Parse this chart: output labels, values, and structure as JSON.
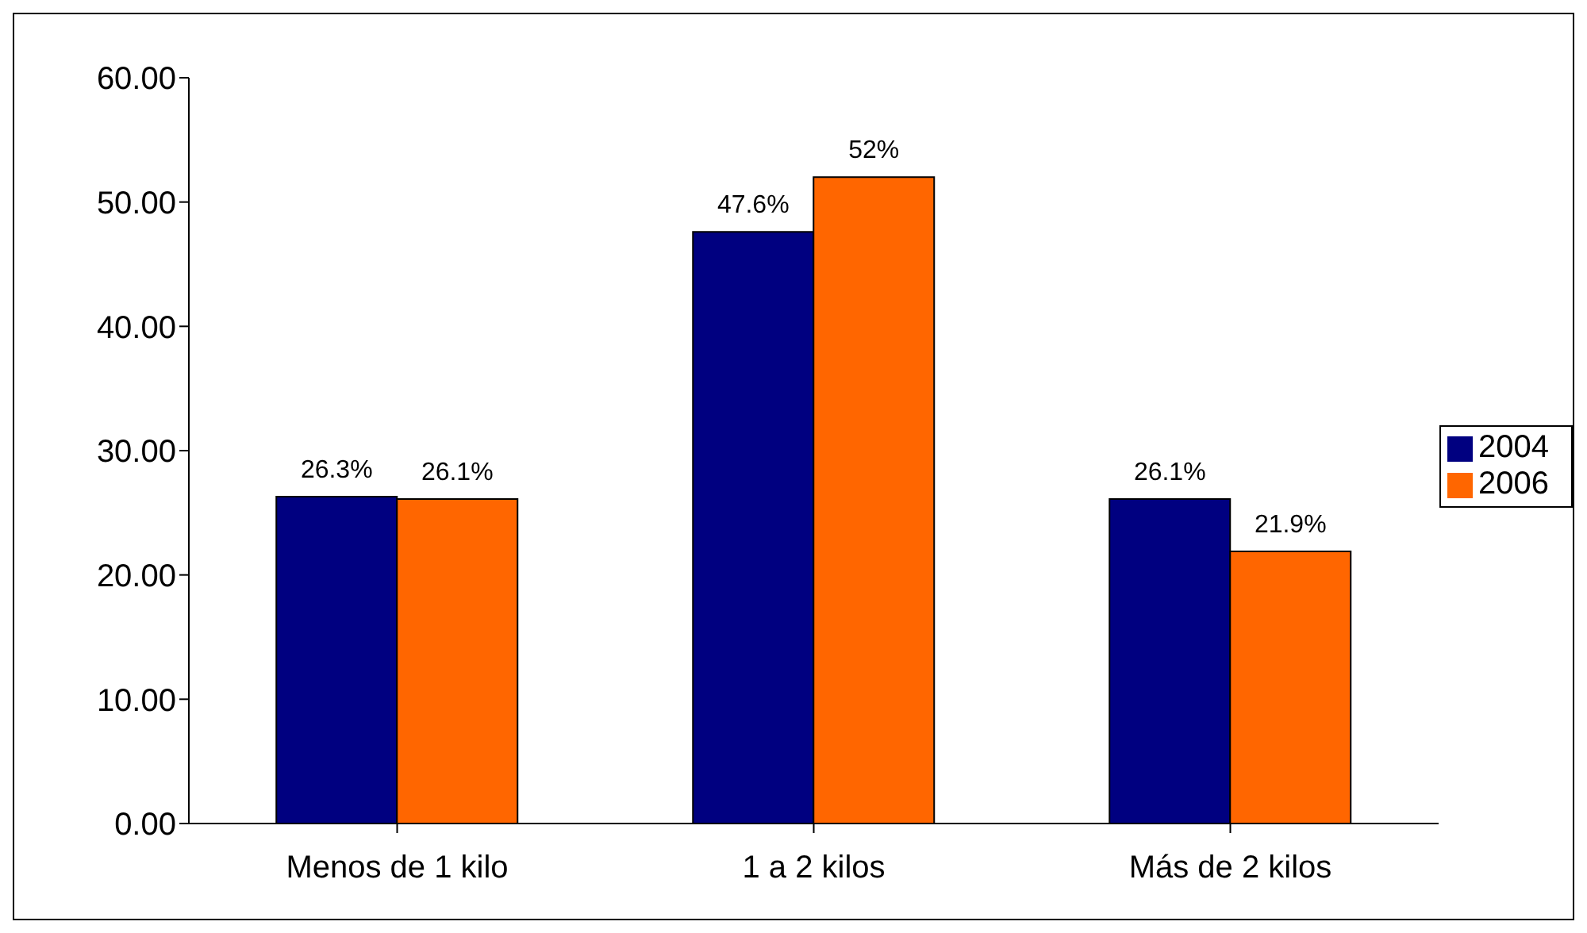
{
  "chart_data": {
    "type": "bar",
    "categories": [
      "Menos de 1 kilo",
      "1 a 2 kilos",
      "Más de 2 kilos"
    ],
    "series": [
      {
        "name": "2004",
        "color": "#000080",
        "values": [
          26.3,
          47.6,
          26.1
        ],
        "value_labels": [
          "26.3%",
          "47.6%",
          "26.1%"
        ]
      },
      {
        "name": "2006",
        "color": "#ff6600",
        "values": [
          26.1,
          52,
          21.9
        ],
        "value_labels": [
          "26.1%",
          "52%",
          "21.9%"
        ]
      }
    ],
    "ylim": [
      0,
      60
    ],
    "yticks": [
      {
        "value": 0,
        "label": "0.00"
      },
      {
        "value": 10,
        "label": "10.00"
      },
      {
        "value": 20,
        "label": "20.00"
      },
      {
        "value": 30,
        "label": "30.00"
      },
      {
        "value": 40,
        "label": "40.00"
      },
      {
        "value": 50,
        "label": "50.00"
      },
      {
        "value": 60,
        "label": "60.00"
      }
    ],
    "grid": false,
    "legend": "right"
  }
}
